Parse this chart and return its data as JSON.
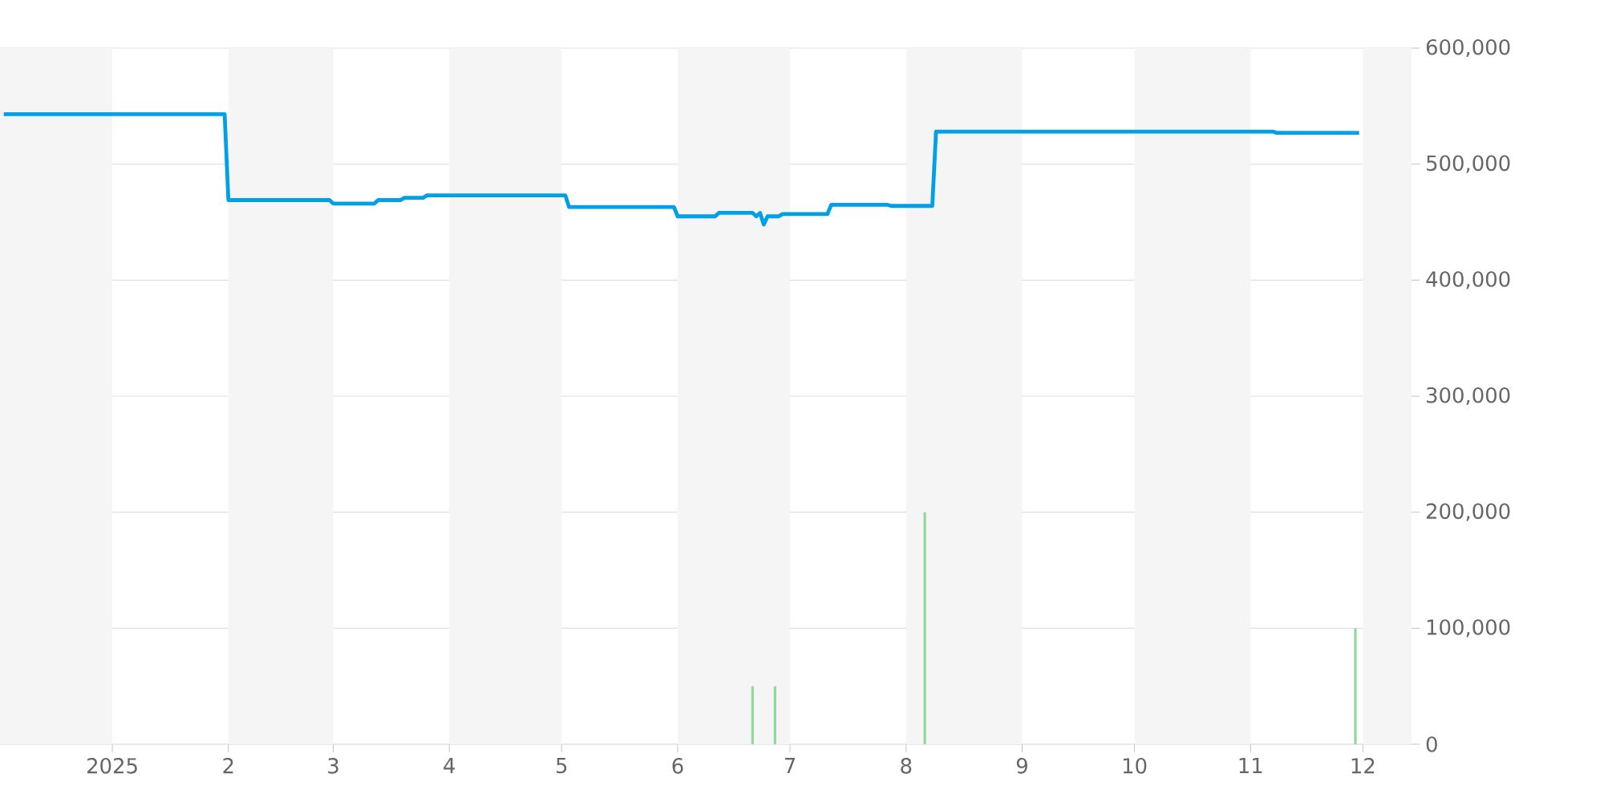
{
  "chart_data": {
    "type": "line",
    "x": [
      "2024-12-03",
      "2025-01-31",
      "2025-02-01",
      "2025-02-28",
      "2025-03-01",
      "2025-03-12",
      "2025-03-13",
      "2025-03-19",
      "2025-03-20",
      "2025-03-25",
      "2025-03-26",
      "2025-05-02",
      "2025-05-03",
      "2025-05-31",
      "2025-06-01",
      "2025-06-11",
      "2025-06-12",
      "2025-06-21",
      "2025-06-22",
      "2025-06-23",
      "2025-06-24",
      "2025-06-25",
      "2025-06-28",
      "2025-06-29",
      "2025-07-11",
      "2025-07-12",
      "2025-07-27",
      "2025-07-28",
      "2025-08-08",
      "2025-08-09",
      "2025-11-07",
      "2025-11-08",
      "2025-11-30"
    ],
    "series": [
      {
        "color": "#00a0e9",
        "values": [
          543000,
          543000,
          469000,
          469000,
          466000,
          466000,
          469000,
          469000,
          471000,
          471000,
          473000,
          473000,
          463000,
          463000,
          455000,
          455000,
          458000,
          458000,
          455000,
          458000,
          448000,
          455000,
          455000,
          457000,
          457000,
          465000,
          465000,
          464000,
          464000,
          528000,
          528000,
          527000,
          527000
        ]
      },
      {
        "type": "bar",
        "color": "#8fd99b",
        "x": [
          "2025-06-21",
          "2025-06-27",
          "2025-08-06",
          "2025-11-29"
        ],
        "values": [
          50000,
          50000,
          200000,
          100000
        ]
      }
    ],
    "xlim": [
      "2024-12-02",
      "2025-12-14"
    ],
    "xticks": [
      {
        "value": "2025-01-01",
        "label": "2025"
      },
      {
        "value": "2025-02-01",
        "label": "2"
      },
      {
        "value": "2025-03-01",
        "label": "3"
      },
      {
        "value": "2025-04-01",
        "label": "4"
      },
      {
        "value": "2025-05-01",
        "label": "5"
      },
      {
        "value": "2025-06-01",
        "label": "6"
      },
      {
        "value": "2025-07-01",
        "label": "7"
      },
      {
        "value": "2025-08-01",
        "label": "8"
      },
      {
        "value": "2025-09-01",
        "label": "9"
      },
      {
        "value": "2025-10-01",
        "label": "10"
      },
      {
        "value": "2025-11-01",
        "label": "11"
      },
      {
        "value": "2025-12-01",
        "label": "12"
      }
    ],
    "ylim": [
      0,
      600000
    ],
    "yticks": [
      {
        "value": 0,
        "label": "0"
      },
      {
        "value": 100000,
        "label": "100,000"
      },
      {
        "value": 200000,
        "label": "200,000"
      },
      {
        "value": 300000,
        "label": "300,000"
      },
      {
        "value": 400000,
        "label": "400,000"
      },
      {
        "value": 500000,
        "label": "500,000"
      },
      {
        "value": 600000,
        "label": "600,000"
      }
    ],
    "grid": "y",
    "bands": [
      {
        "axis": "x",
        "from": "2024-12-02",
        "to": "2025-01-01",
        "color": "#f5f5f5"
      },
      {
        "axis": "x",
        "from": "2025-02-01",
        "to": "2025-03-01",
        "color": "#f5f5f5"
      },
      {
        "axis": "x",
        "from": "2025-04-01",
        "to": "2025-05-01",
        "color": "#f5f5f5"
      },
      {
        "axis": "x",
        "from": "2025-06-01",
        "to": "2025-07-01",
        "color": "#f5f5f5"
      },
      {
        "axis": "x",
        "from": "2025-08-01",
        "to": "2025-09-01",
        "color": "#f5f5f5"
      },
      {
        "axis": "x",
        "from": "2025-10-01",
        "to": "2025-11-01",
        "color": "#f5f5f5"
      },
      {
        "axis": "x",
        "from": "2025-12-01",
        "to": "2025-12-14",
        "color": "#f5f5f5"
      }
    ]
  }
}
